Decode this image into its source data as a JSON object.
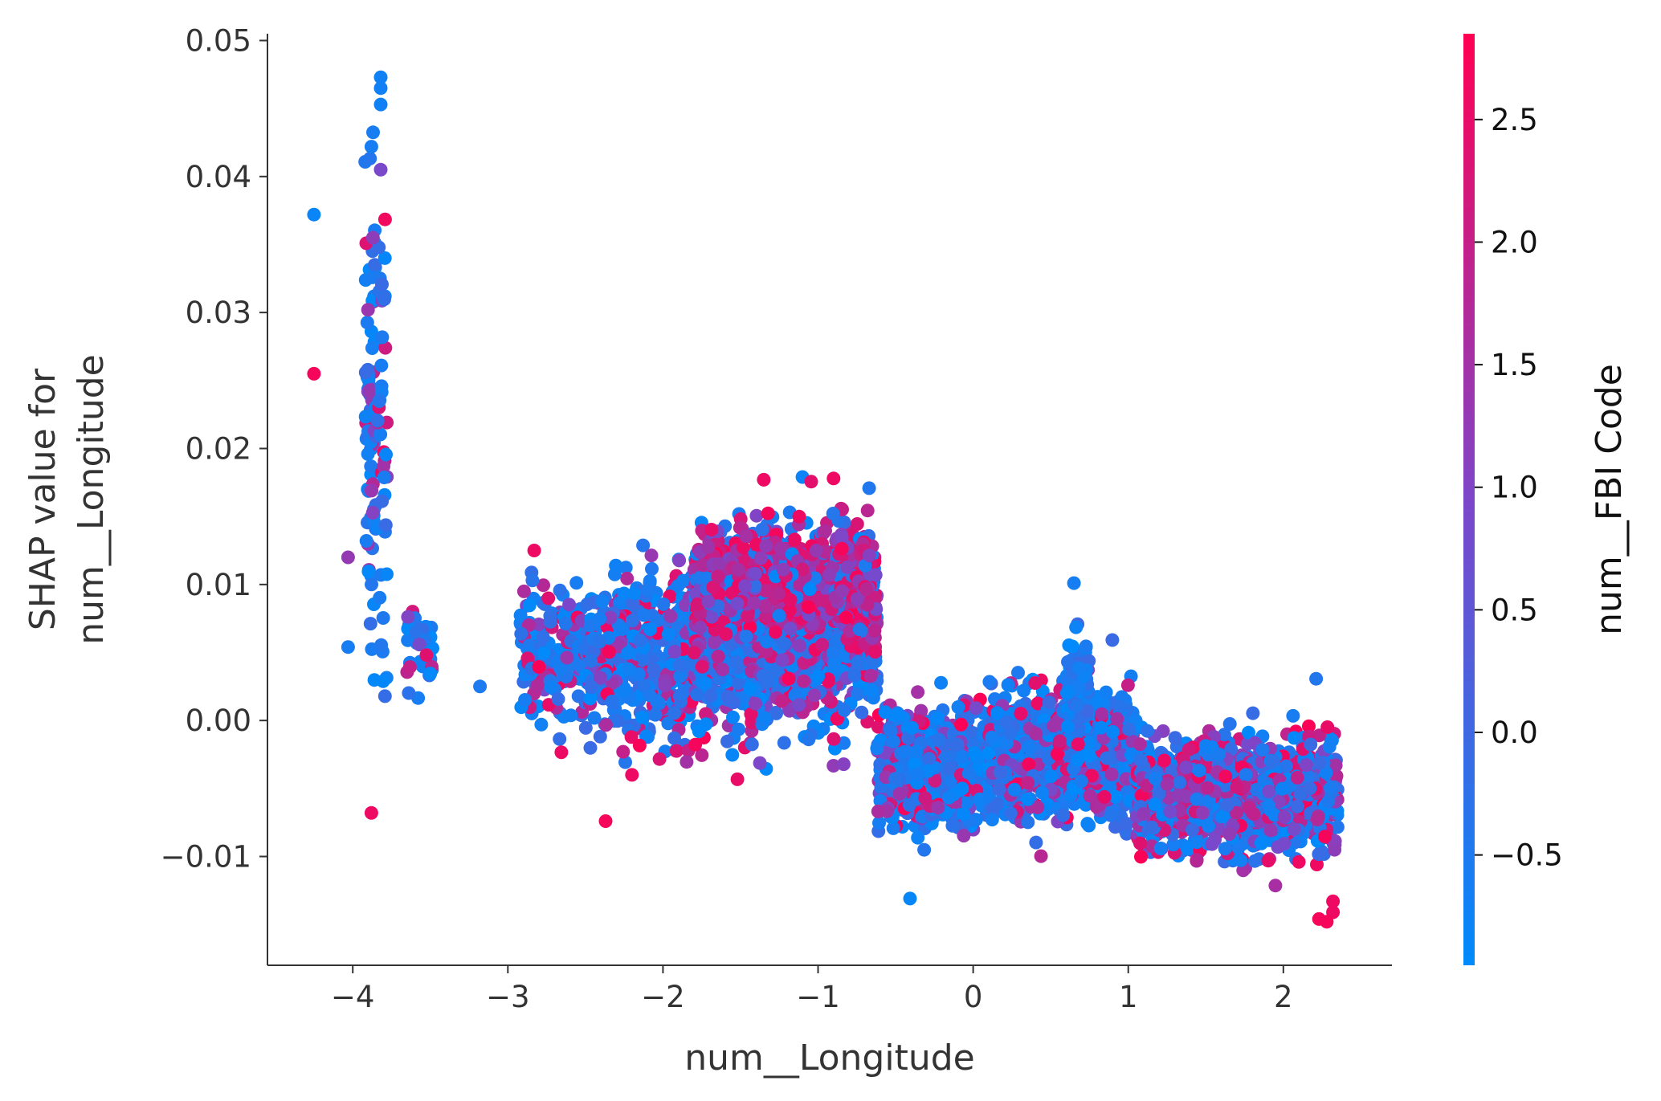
{
  "chart_data": {
    "type": "scatter",
    "title": "",
    "xlabel": "num__Longitude",
    "ylabel_lines": [
      "SHAP value for",
      "num__Longitude"
    ],
    "xlim": [
      -4.55,
      2.7
    ],
    "ylim": [
      -0.018,
      0.0505
    ],
    "x_ticks": [
      -4,
      -3,
      -2,
      -1,
      0,
      1,
      2
    ],
    "x_tick_labels": [
      "−4",
      "−3",
      "−2",
      "−1",
      "0",
      "1",
      "2"
    ],
    "y_ticks": [
      -0.01,
      0.0,
      0.01,
      0.02,
      0.03,
      0.04,
      0.05
    ],
    "y_tick_labels": [
      "−0.01",
      "0.00",
      "0.01",
      "0.02",
      "0.03",
      "0.04",
      "0.05"
    ],
    "grid": false,
    "colorbar": {
      "label": "num__FBI Code",
      "range": [
        -0.95,
        2.85
      ],
      "ticks": [
        -0.5,
        0.0,
        0.5,
        1.0,
        1.5,
        2.0,
        2.5
      ],
      "tick_labels": [
        "−0.5",
        "0.0",
        "0.5",
        "1.0",
        "1.5",
        "2.0",
        "2.5"
      ],
      "colormap": [
        "#008afb",
        "#7d46c9",
        "#ff0052"
      ]
    },
    "point_color_low": "#008afb",
    "point_color_high": "#ff0052",
    "notable_points": [
      {
        "x": -4.25,
        "y": 0.0372,
        "c": -0.8
      },
      {
        "x": -4.25,
        "y": 0.0255,
        "c": 2.7
      },
      {
        "x": -4.03,
        "y": 0.012,
        "c": 1.3
      },
      {
        "x": -4.03,
        "y": 0.0054,
        "c": -0.6
      },
      {
        "x": -3.82,
        "y": 0.0473,
        "c": -0.7
      },
      {
        "x": -3.82,
        "y": 0.0465,
        "c": -0.7
      },
      {
        "x": -3.82,
        "y": 0.0453,
        "c": -0.7
      },
      {
        "x": -3.88,
        "y": 0.0422,
        "c": -0.6
      },
      {
        "x": -3.82,
        "y": 0.0405,
        "c": 0.9
      },
      {
        "x": -3.87,
        "y": 0.0355,
        "c": 1.2
      },
      {
        "x": -3.88,
        "y": -0.0068,
        "c": 2.6
      },
      {
        "x": -3.18,
        "y": 0.0025,
        "c": -0.5
      },
      {
        "x": -2.83,
        "y": 0.0125,
        "c": 2.6
      },
      {
        "x": -2.37,
        "y": -0.0074,
        "c": 2.7
      },
      {
        "x": -2.2,
        "y": -0.004,
        "c": 2.6
      },
      {
        "x": -1.35,
        "y": 0.0177,
        "c": 2.6
      },
      {
        "x": -0.9,
        "y": 0.0178,
        "c": 2.6
      },
      {
        "x": 0.65,
        "y": 0.0101,
        "c": -0.6
      },
      {
        "x": 2.1,
        "y": -0.0104,
        "c": 2.6
      },
      {
        "x": 2.32,
        "y": -0.0133,
        "c": 2.6
      },
      {
        "x": 2.32,
        "y": -0.0141,
        "c": 2.6
      },
      {
        "x": 2.23,
        "y": -0.0146,
        "c": 2.7
      },
      {
        "x": 2.28,
        "y": -0.0148,
        "c": 2.7
      },
      {
        "x": 2.33,
        "y": -0.0095,
        "c": 1.2
      }
    ],
    "clusters": [
      {
        "x_range": [
          -3.92,
          -3.85
        ],
        "y_mean": 0.022,
        "y_sd": 0.009,
        "c_mix": 0.22,
        "n": 80
      },
      {
        "x_range": [
          -3.84,
          -3.78
        ],
        "y_mean": 0.02,
        "y_sd": 0.01,
        "c_mix": 0.28,
        "n": 45
      },
      {
        "x_range": [
          -3.65,
          -3.48
        ],
        "y_mean": 0.006,
        "y_sd": 0.002,
        "c_mix": 0.15,
        "n": 35
      },
      {
        "x_range": [
          -2.92,
          -2.5
        ],
        "y_mean": 0.005,
        "y_sd": 0.0022,
        "c_mix": 0.25,
        "n": 160
      },
      {
        "x_range": [
          -2.5,
          -1.8
        ],
        "y_mean": 0.0045,
        "y_sd": 0.003,
        "c_mix": 0.3,
        "n": 450
      },
      {
        "x_range": [
          -1.8,
          -0.62
        ],
        "y_mean": 0.0065,
        "y_sd": 0.0032,
        "c_mix": 0.35,
        "n": 1300
      },
      {
        "x_range": [
          -1.8,
          -0.62
        ],
        "y_mean": 0.01,
        "y_sd": 0.002,
        "c_mix": 0.8,
        "n": 650
      },
      {
        "x_range": [
          -0.62,
          0.1
        ],
        "y_mean": -0.0035,
        "y_sd": 0.002,
        "c_mix": 0.3,
        "n": 700
      },
      {
        "x_range": [
          0.1,
          1.05
        ],
        "y_mean": -0.0025,
        "y_sd": 0.0022,
        "c_mix": 0.3,
        "n": 1000
      },
      {
        "x_range": [
          0.6,
          0.75
        ],
        "y_mean": 0.003,
        "y_sd": 0.0018,
        "c_mix": 0.05,
        "n": 90
      },
      {
        "x_range": [
          1.05,
          2.35
        ],
        "y_mean": -0.0055,
        "y_sd": 0.002,
        "c_mix": 0.45,
        "n": 1100
      }
    ]
  }
}
